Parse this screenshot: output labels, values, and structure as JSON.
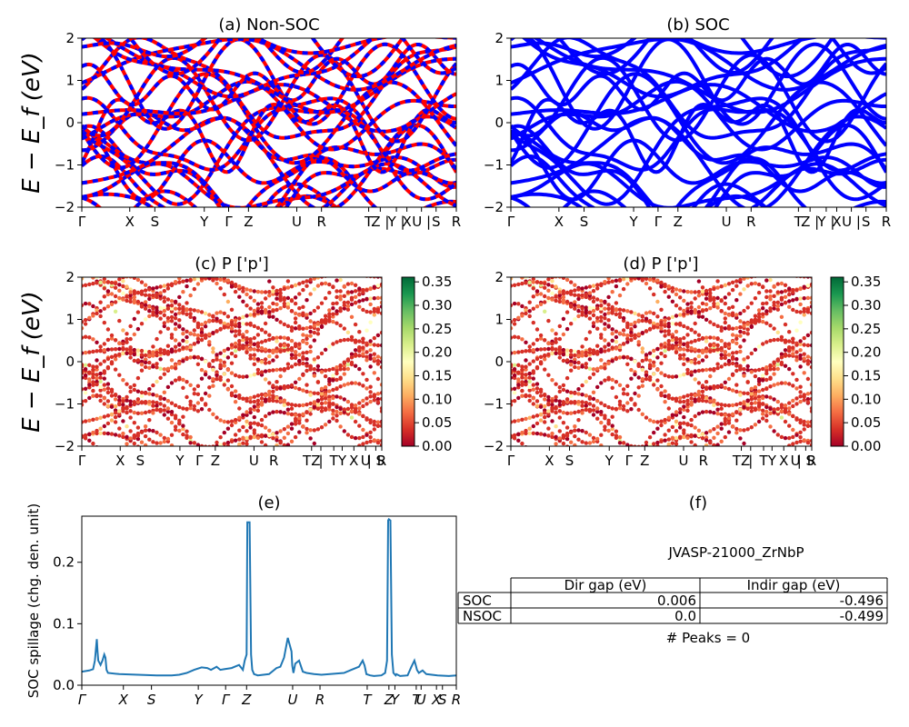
{
  "figure": {
    "title_a": "(a) Non-SOC",
    "title_b": "(b) SOC",
    "title_c": "(c)  P ['p']",
    "title_d": "(d) P ['p']",
    "title_e": "(e)",
    "title_f": "(f)",
    "ylabel_band": "E − E_f (eV)",
    "ylabel_spillage": "SOC spillage (chg. den. unit)",
    "colors": {
      "nonsoc": "#ff0000",
      "soc": "#0000ff",
      "spillage_line": "#1f77b4"
    }
  },
  "table": {
    "material": "JVASP-21000_ZrNbP",
    "headers": [
      "",
      "Dir gap (eV)",
      "Indir gap (eV)"
    ],
    "rows": [
      [
        "SOC",
        "0.006",
        "-0.496"
      ],
      [
        "NSOC",
        "0.0",
        "-0.499"
      ]
    ],
    "peaks_text": "# Peaks = 0"
  },
  "chart_data": [
    {
      "id": "a",
      "type": "line",
      "title": "(a) Non-SOC",
      "ylabel": "E − E_f (eV)",
      "ylim": [
        -2,
        2
      ],
      "yticks": [
        -2,
        -1,
        0,
        1,
        2
      ],
      "xticks": [
        "Γ",
        "X",
        "S",
        "Y",
        "Γ",
        "Z",
        "U",
        "R",
        "T",
        "Z |",
        "Y |",
        "X",
        "U |",
        "S",
        "R"
      ],
      "kpoints": [
        0,
        0.128,
        0.195,
        0.327,
        0.392,
        0.445,
        0.574,
        0.64,
        0.766,
        0.797,
        0.84,
        0.868,
        0.907,
        0.946,
        1.0
      ],
      "series": [
        {
          "name": "Non-SOC",
          "color": "#ff0000",
          "style": "solid"
        },
        {
          "name": "SOC",
          "color": "#0000ff",
          "style": "dashed"
        }
      ]
    },
    {
      "id": "b",
      "type": "line",
      "title": "(b) SOC",
      "ylabel": "",
      "ylim": [
        -2,
        2
      ],
      "yticks": [
        -2,
        -1,
        0,
        1,
        2
      ],
      "xticks": [
        "Γ",
        "X",
        "S",
        "Y",
        "Γ",
        "Z",
        "U",
        "R",
        "T",
        "Z |",
        "Y |",
        "X",
        "U |",
        "S",
        "R"
      ],
      "kpoints": [
        0,
        0.128,
        0.195,
        0.327,
        0.392,
        0.445,
        0.574,
        0.64,
        0.766,
        0.797,
        0.84,
        0.868,
        0.907,
        0.946,
        1.0
      ],
      "series": [
        {
          "name": "SOC",
          "color": "#0000ff",
          "style": "solid"
        }
      ]
    },
    {
      "id": "c",
      "type": "scatter",
      "title": "(c)  P ['p']",
      "ylabel": "E − E_f (eV)",
      "ylim": [
        -2,
        2
      ],
      "yticks": [
        -2,
        -1,
        0,
        1,
        2
      ],
      "xticks": [
        "Γ",
        "X",
        "S",
        "Y",
        "Γ",
        "Z",
        "U",
        "R",
        "TZ",
        "|",
        "T",
        "Y",
        "X",
        "U",
        "| S",
        "R"
      ],
      "kpoints": [
        0,
        0.128,
        0.195,
        0.327,
        0.392,
        0.445,
        0.574,
        0.64,
        0.766,
        0.797,
        0.84,
        0.868,
        0.907,
        0.946,
        0.98,
        1.0
      ],
      "colorbar": {
        "min": 0.0,
        "max": 0.36,
        "ticks": [
          "0.00",
          "0.05",
          "0.10",
          "0.15",
          "0.20",
          "0.25",
          "0.30",
          "0.35"
        ],
        "cmap": "RdYlGn"
      }
    },
    {
      "id": "d",
      "type": "scatter",
      "title": "(d) P ['p']",
      "ylabel": "",
      "ylim": [
        -2,
        2
      ],
      "yticks": [
        -2,
        -1,
        0,
        1,
        2
      ],
      "xticks": [
        "Γ",
        "X",
        "S",
        "Y",
        "Γ",
        "Z",
        "U",
        "R",
        "TZ",
        "|",
        "T",
        "Y",
        "X",
        "U",
        "| S",
        "R"
      ],
      "kpoints": [
        0,
        0.128,
        0.195,
        0.327,
        0.392,
        0.445,
        0.574,
        0.64,
        0.766,
        0.797,
        0.84,
        0.868,
        0.907,
        0.946,
        0.98,
        1.0
      ],
      "colorbar": {
        "min": 0.0,
        "max": 0.36,
        "ticks": [
          "0.00",
          "0.05",
          "0.10",
          "0.15",
          "0.20",
          "0.25",
          "0.30",
          "0.35"
        ],
        "cmap": "RdYlGn"
      }
    },
    {
      "id": "e",
      "type": "line",
      "title": "(e)",
      "ylabel": "SOC spillage (chg. den. unit)",
      "ylim": [
        0,
        0.275
      ],
      "yticks": [
        0.0,
        0.1,
        0.2
      ],
      "xticks": [
        "Γ",
        "X",
        "S",
        "Y",
        "Γ",
        "Z",
        "U",
        "R",
        "T",
        "Z",
        "Y",
        "T",
        "U",
        "X",
        "S",
        "R"
      ],
      "xtick_pos": [
        0,
        0.111,
        0.186,
        0.311,
        0.384,
        0.44,
        0.563,
        0.636,
        0.762,
        0.82,
        0.836,
        0.893,
        0.906,
        0.947,
        0.963,
        1.0
      ],
      "series": [
        {
          "name": "spillage",
          "x": [
            0,
            0.02,
            0.03,
            0.035,
            0.04,
            0.042,
            0.044,
            0.05,
            0.055,
            0.06,
            0.063,
            0.066,
            0.07,
            0.1,
            0.15,
            0.2,
            0.24,
            0.26,
            0.28,
            0.3,
            0.32,
            0.335,
            0.345,
            0.36,
            0.37,
            0.38,
            0.4,
            0.42,
            0.43,
            0.435,
            0.44,
            0.442,
            0.445,
            0.448,
            0.452,
            0.455,
            0.46,
            0.47,
            0.5,
            0.52,
            0.53,
            0.54,
            0.55,
            0.56,
            0.562,
            0.565,
            0.57,
            0.58,
            0.59,
            0.6,
            0.62,
            0.64,
            0.7,
            0.72,
            0.74,
            0.75,
            0.755,
            0.76,
            0.77,
            0.78,
            0.8,
            0.81,
            0.815,
            0.818,
            0.82,
            0.824,
            0.828,
            0.832,
            0.838,
            0.84,
            0.85,
            0.87,
            0.88,
            0.888,
            0.892,
            0.895,
            0.9,
            0.91,
            0.92,
            0.95,
            0.98,
            1.0
          ],
          "y": [
            0.022,
            0.024,
            0.026,
            0.04,
            0.075,
            0.055,
            0.04,
            0.033,
            0.04,
            0.05,
            0.045,
            0.025,
            0.02,
            0.018,
            0.017,
            0.016,
            0.016,
            0.017,
            0.02,
            0.025,
            0.029,
            0.028,
            0.025,
            0.03,
            0.025,
            0.026,
            0.028,
            0.033,
            0.025,
            0.04,
            0.05,
            0.265,
            0.265,
            0.265,
            0.05,
            0.025,
            0.018,
            0.016,
            0.018,
            0.028,
            0.03,
            0.045,
            0.077,
            0.055,
            0.032,
            0.02,
            0.035,
            0.04,
            0.022,
            0.02,
            0.018,
            0.017,
            0.02,
            0.025,
            0.03,
            0.04,
            0.032,
            0.018,
            0.016,
            0.015,
            0.016,
            0.02,
            0.04,
            0.268,
            0.27,
            0.268,
            0.05,
            0.02,
            0.016,
            0.018,
            0.015,
            0.016,
            0.03,
            0.04,
            0.032,
            0.025,
            0.02,
            0.024,
            0.018,
            0.016,
            0.015,
            0.016
          ],
          "color": "#1f77b4"
        }
      ]
    }
  ]
}
